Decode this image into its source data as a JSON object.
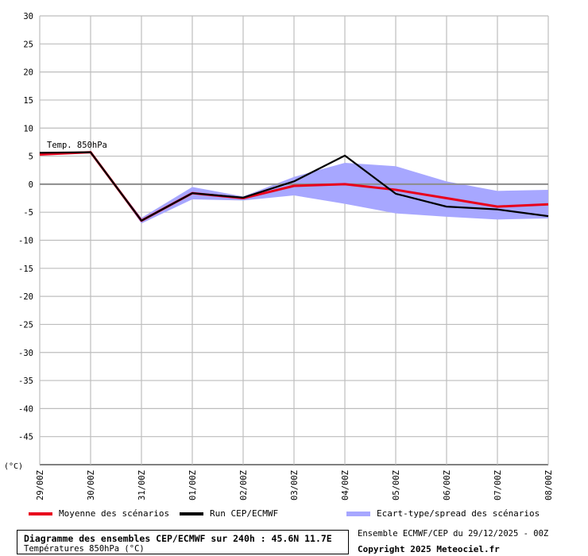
{
  "chart_data": {
    "type": "line",
    "unit_label": "(°C)",
    "annotation": "Temp. 850hPa",
    "ylim": [
      -50,
      30
    ],
    "yticks": [
      30,
      25,
      20,
      15,
      10,
      5,
      0,
      -5,
      -10,
      -15,
      -20,
      -25,
      -30,
      -35,
      -40,
      -45
    ],
    "x_labels": [
      "29/00Z",
      "30/00Z",
      "31/00Z",
      "01/00Z",
      "02/00Z",
      "03/00Z",
      "04/00Z",
      "05/00Z",
      "06/00Z",
      "07/00Z",
      "08/00Z"
    ],
    "x_hours": [
      0,
      24,
      48,
      72,
      96,
      120,
      144,
      168,
      192,
      216,
      240
    ],
    "series": [
      {
        "name": "Moyenne des scénarios",
        "color": "#e8001c",
        "x": [
          0,
          24,
          48,
          72,
          96,
          120,
          144,
          168,
          192,
          216,
          240
        ],
        "values": [
          5.3,
          5.7,
          -6.5,
          -1.6,
          -2.5,
          -0.3,
          0.0,
          -1.0,
          -2.5,
          -4.0,
          -3.6
        ]
      },
      {
        "name": "Run CEP/ECMWF",
        "color": "#000000",
        "x": [
          0,
          24,
          48,
          72,
          96,
          120,
          144,
          168,
          192,
          216,
          240
        ],
        "values": [
          5.6,
          5.7,
          -6.5,
          -1.6,
          -2.4,
          0.5,
          5.1,
          -1.7,
          -4.0,
          -4.5,
          -5.7
        ]
      }
    ],
    "spread": {
      "name": "Ecart-type/spread des scénarios",
      "color": "#a7a7ff",
      "x": [
        0,
        24,
        48,
        72,
        96,
        120,
        144,
        168,
        192,
        216,
        240
      ],
      "upper": [
        5.3,
        5.7,
        -6.0,
        -0.5,
        -2.2,
        1.3,
        3.8,
        3.2,
        0.5,
        -1.2,
        -1.0
      ],
      "lower": [
        5.3,
        5.7,
        -7.0,
        -2.7,
        -2.9,
        -2.0,
        -3.5,
        -5.2,
        -5.8,
        -6.3,
        -6.1
      ]
    }
  },
  "footer": {
    "title": "Diagramme des ensembles CEP/ECMWF sur 240h : 45.6N 11.7E",
    "subtitle": "Températures 850hPa (°C)",
    "run_info": "Ensemble ECMWF/CEP du 29/12/2025 - 00Z",
    "copyright": "Copyright 2025 Meteociel.fr"
  }
}
